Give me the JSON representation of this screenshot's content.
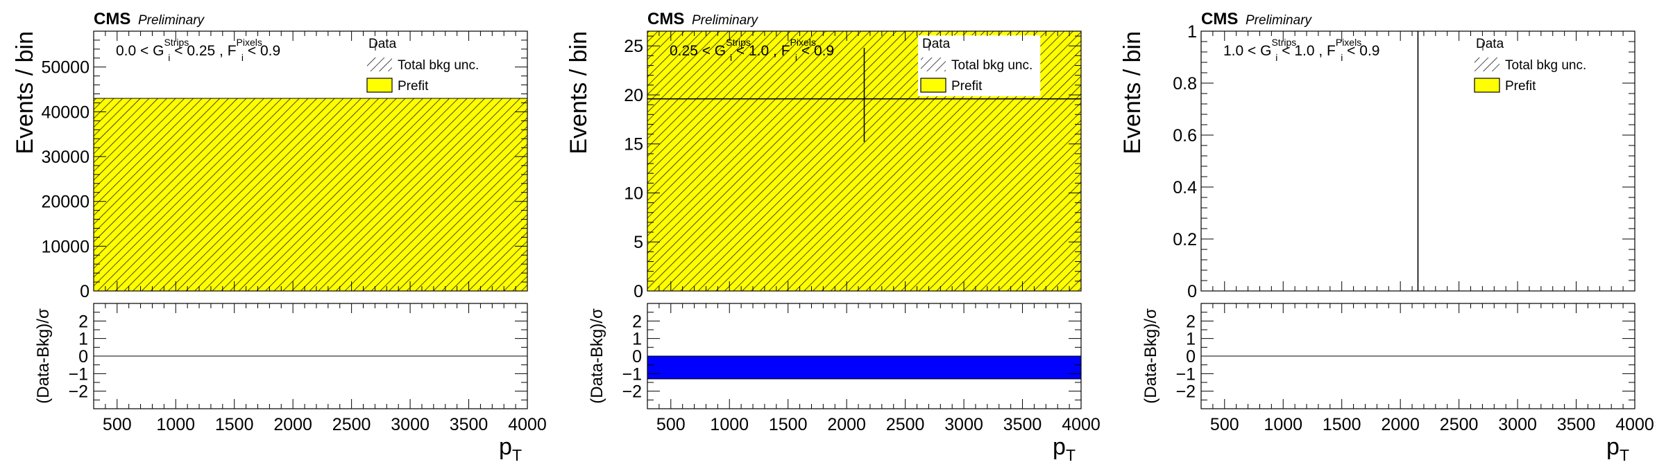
{
  "colors": {
    "prefit_fill": "#ffff00",
    "pull_fill": "#0000ff",
    "axis": "#000000",
    "background": "#ffffff"
  },
  "chart_data": [
    {
      "type": "bar",
      "experiment": "CMS",
      "status": "Preliminary",
      "category": {
        "g_lo": "0.0 < G",
        "g_sup": "Strips",
        "g_sub": "i",
        "g_hi": " < 0.25 , F",
        "f_sup": "Pixels",
        "f_sub": "i",
        "f_hi": " < 0.9"
      },
      "legend": {
        "placement": "top-right",
        "data": "Data",
        "unc": "Total bkg unc.",
        "prefit": "Prefit"
      },
      "ylabel": "Events / bin",
      "xlabel": "p",
      "xlabel_sub": "T",
      "xlim": [
        300,
        4000
      ],
      "ylim": [
        0,
        58000
      ],
      "yticks": [
        0,
        10000,
        20000,
        30000,
        40000,
        50000
      ],
      "xticks": [
        500,
        1000,
        1500,
        2000,
        2500,
        3000,
        3500,
        4000
      ],
      "bins": [
        {
          "x0": 300,
          "x1": 4000,
          "prefit": 43000
        }
      ],
      "data_points": [],
      "ratio": {
        "ylabel": "(Data-Bkg)/σ",
        "ylim": [
          -3,
          3
        ],
        "yticks": [
          -2,
          -1,
          0,
          1,
          2
        ],
        "bands": []
      }
    },
    {
      "type": "bar",
      "experiment": "CMS",
      "status": "Preliminary",
      "category": {
        "g_lo": "0.25 < G",
        "g_sup": "Strips",
        "g_sub": "i",
        "g_hi": " < 1.0 , F",
        "f_sup": "Pixels",
        "f_sub": "i",
        "f_hi": " < 0.9"
      },
      "legend": {
        "placement": "top-right",
        "data": "Data",
        "unc": "Total bkg unc.",
        "prefit": "Prefit"
      },
      "ylabel": "Events / bin",
      "xlabel": "p",
      "xlabel_sub": "T",
      "xlim": [
        300,
        4000
      ],
      "ylim": [
        0,
        26.5
      ],
      "yticks": [
        0,
        5,
        10,
        15,
        20,
        25
      ],
      "xticks": [
        500,
        1000,
        1500,
        2000,
        2500,
        3000,
        3500,
        4000
      ],
      "bins": [
        {
          "x0": 300,
          "x1": 4000,
          "prefit": 26.5
        }
      ],
      "data_points": [
        {
          "x": 2150,
          "x_lo": 300,
          "x_hi": 4000,
          "y": 19.6,
          "y_lo": 15.2,
          "y_hi": 24.8
        }
      ],
      "ratio": {
        "ylabel": "(Data-Bkg)/σ",
        "ylim": [
          -3,
          3
        ],
        "yticks": [
          -2,
          -1,
          0,
          1,
          2
        ],
        "bands": [
          {
            "x0": 300,
            "x1": 4000,
            "y0": -1.3,
            "y1": 0
          }
        ]
      }
    },
    {
      "type": "bar",
      "experiment": "CMS",
      "status": "Preliminary",
      "category": {
        "g_lo": "1.0 < G",
        "g_sup": "Strips",
        "g_sub": "i",
        "g_hi": " < 1.0 , F",
        "f_sup": "Pixels",
        "f_sub": "i",
        "f_hi": " < 0.9"
      },
      "legend": {
        "placement": "top-right",
        "data": "Data",
        "unc": "Total bkg unc.",
        "prefit": "Prefit"
      },
      "ylabel": "Events / bin",
      "xlabel": "p",
      "xlabel_sub": "T",
      "xlim": [
        300,
        4000
      ],
      "ylim": [
        0,
        1
      ],
      "yticks": [
        0,
        0.2,
        0.4,
        0.6,
        0.8,
        1
      ],
      "xticks": [
        500,
        1000,
        1500,
        2000,
        2500,
        3000,
        3500,
        4000
      ],
      "bins": [],
      "data_points": [
        {
          "x": 2150,
          "x_lo": 2150,
          "x_hi": 2150,
          "y": 0,
          "y_lo": 0,
          "y_hi": 1
        }
      ],
      "ratio": {
        "ylabel": "(Data-Bkg)/σ",
        "ylim": [
          -3,
          3
        ],
        "yticks": [
          -2,
          -1,
          0,
          1,
          2
        ],
        "bands": []
      }
    }
  ]
}
